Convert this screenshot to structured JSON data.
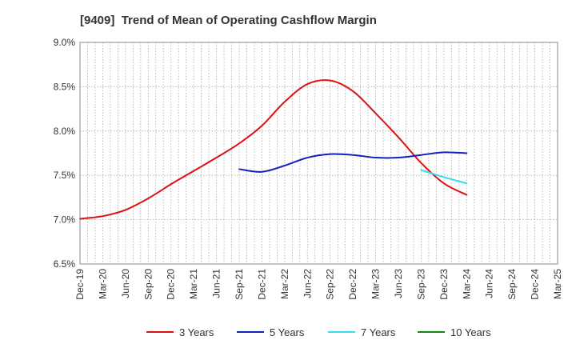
{
  "chart_data": {
    "type": "line",
    "title": "[9409]  Trend of Mean of Operating Cashflow Margin",
    "xlabel": "",
    "ylabel": "",
    "ylim": [
      6.5,
      9.0
    ],
    "y_ticks": [
      6.5,
      7.0,
      7.5,
      8.0,
      8.5,
      9.0
    ],
    "y_tick_labels": [
      "6.5%",
      "7.0%",
      "7.5%",
      "8.0%",
      "8.5%",
      "9.0%"
    ],
    "x_tick_labels": [
      "Dec-19",
      "Mar-20",
      "Jun-20",
      "Sep-20",
      "Dec-20",
      "Mar-21",
      "Jun-21",
      "Sep-21",
      "Dec-21",
      "Mar-22",
      "Jun-22",
      "Sep-22",
      "Dec-22",
      "Mar-23",
      "Jun-23",
      "Sep-23",
      "Dec-23",
      "Mar-24",
      "Jun-24",
      "Sep-24",
      "Dec-24",
      "Mar-25"
    ],
    "grid": true,
    "legend_position": "bottom",
    "series": [
      {
        "name": "3 Years",
        "color": "#dd1111",
        "values": [
          7.01,
          7.04,
          7.11,
          7.24,
          7.4,
          7.55,
          7.7,
          7.86,
          8.06,
          8.33,
          8.53,
          8.57,
          8.45,
          8.2,
          7.93,
          7.64,
          7.41,
          7.28,
          null,
          null,
          null,
          null
        ]
      },
      {
        "name": "5 Years",
        "color": "#1122bb",
        "values": [
          null,
          null,
          null,
          null,
          null,
          null,
          null,
          7.57,
          7.54,
          7.61,
          7.7,
          7.74,
          7.73,
          7.7,
          7.7,
          7.73,
          7.76,
          7.75,
          null,
          null,
          null,
          null
        ]
      },
      {
        "name": "7 Years",
        "color": "#33ddee",
        "values": [
          null,
          null,
          null,
          null,
          null,
          null,
          null,
          null,
          null,
          null,
          null,
          null,
          null,
          null,
          null,
          7.56,
          7.48,
          7.41,
          null,
          null,
          null,
          null
        ]
      },
      {
        "name": "10 Years",
        "color": "#118811",
        "values": [
          null,
          null,
          null,
          null,
          null,
          null,
          null,
          null,
          null,
          null,
          null,
          null,
          null,
          null,
          null,
          null,
          null,
          null,
          null,
          null,
          null,
          null
        ]
      }
    ]
  }
}
